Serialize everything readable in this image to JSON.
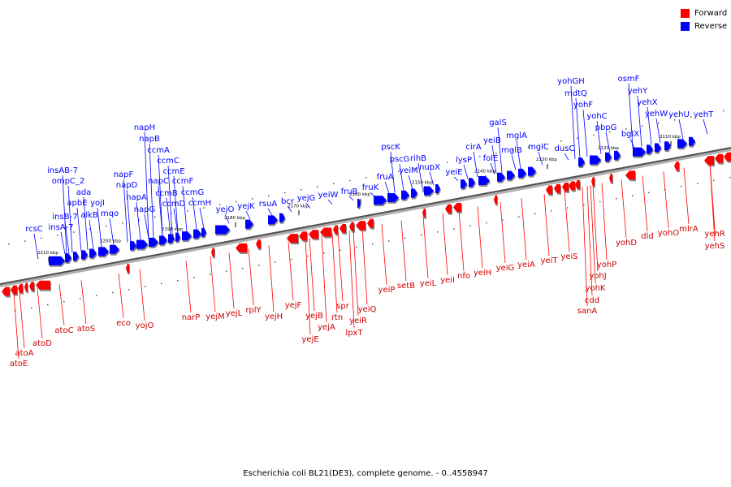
{
  "legend": {
    "forward_label": "Forward",
    "reverse_label": "Reverse",
    "forward_color": "#ff0000",
    "reverse_color": "#0000ff"
  },
  "caption": "Escherichia coli BL21(DE3), complete genome. - 0..4558947",
  "axis": {
    "ticks": [
      {
        "label": "2210 kbp",
        "bp": 2210000
      },
      {
        "label": "2200 kbp",
        "bp": 2200000
      },
      {
        "label": "2190 kbp",
        "bp": 2190000
      },
      {
        "label": "2180 kbp",
        "bp": 2180000
      },
      {
        "label": "2170 kbp",
        "bp": 2170000
      },
      {
        "label": "2160 kbp",
        "bp": 2160000
      },
      {
        "label": "2150 kbp",
        "bp": 2150000
      },
      {
        "label": "2140 kbp",
        "bp": 2140000
      },
      {
        "label": "2130 kbp",
        "bp": 2130000
      },
      {
        "label": "2120 kbp",
        "bp": 2120000
      },
      {
        "label": "2110 kbp",
        "bp": 2110000
      }
    ]
  },
  "reverse_genes": [
    "rcsC",
    "insA-7",
    "insB-7",
    "insAB-7",
    "ompC_2",
    "apbE",
    "ada",
    "alkB",
    "yojI",
    "mqo",
    "napF",
    "napD",
    "napA",
    "napG",
    "napH",
    "napB",
    "ccmA",
    "napC",
    "ccmC",
    "ccmB",
    "ccmE",
    "ccmD",
    "ccmF",
    "ccmG",
    "ccmH",
    "yejO",
    "yejK",
    "rsuA",
    "bcr",
    "yejG",
    "yeiW",
    "fruB",
    "fruK",
    "fruA",
    "pscK",
    "pscG",
    "yeiM",
    "rihB",
    "nupX",
    "yeiE",
    "lysP",
    "cirA",
    "yeiB",
    "folE",
    "galS",
    "mglB",
    "mglA",
    "mglC",
    "dusC",
    "yohGH",
    "mdtQ",
    "yohF",
    "yohC",
    "pbpG",
    "bglX",
    "osmF",
    "yehY",
    "yehX",
    "yehW",
    "yehU",
    "yehT"
  ],
  "forward_genes": [
    "atoE",
    "atoA",
    "atoD",
    "atoC",
    "atoS",
    "eco",
    "yojO",
    "narP",
    "yejM",
    "yejL",
    "rplY",
    "yejH",
    "yejF",
    "yejE",
    "yejB",
    "yejA",
    "rtn",
    "spr",
    "lpxT",
    "yeiR",
    "yeiQ",
    "yeiP",
    "setB",
    "yeiL",
    "yeiI",
    "nfo",
    "yeiH",
    "yeiG",
    "yeiA",
    "yeiT",
    "yeiS",
    "cdd",
    "sanA",
    "yohK",
    "yohJ",
    "yohP",
    "yohD",
    "dld",
    "yohO",
    "mlrA",
    "yehR",
    "yehS"
  ]
}
